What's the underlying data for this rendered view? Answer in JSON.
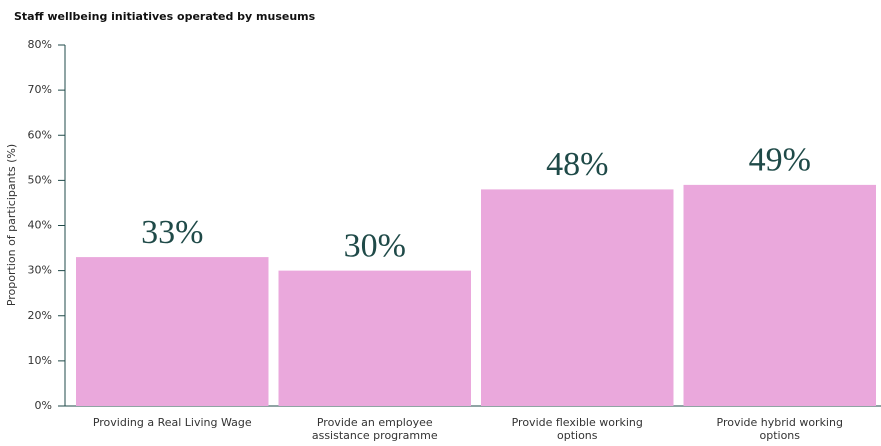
{
  "chart_data": {
    "type": "bar",
    "title": "Staff wellbeing initiatives operated by museums",
    "y_label": "Proportion of participants (%)",
    "categories": [
      "Providing a Real Living Wage",
      "Provide an employee assistance programme",
      "Provide flexible working options",
      "Provide hybrid working options"
    ],
    "values": [
      33,
      30,
      48,
      49
    ],
    "value_labels": [
      "33%",
      "30%",
      "48%",
      "49%"
    ],
    "color": "#eaa8dc",
    "ylim": [
      0,
      80
    ],
    "yticks": [
      {
        "value": 0,
        "label": "0%"
      },
      {
        "value": 10,
        "label": "10%"
      },
      {
        "value": 20,
        "label": "20%"
      },
      {
        "value": 30,
        "label": "30%"
      },
      {
        "value": 40,
        "label": "40%"
      },
      {
        "value": 50,
        "label": "50%"
      },
      {
        "value": 60,
        "label": "60%"
      },
      {
        "value": 70,
        "label": "70%"
      },
      {
        "value": 80,
        "label": "80%"
      }
    ],
    "grid": false
  }
}
